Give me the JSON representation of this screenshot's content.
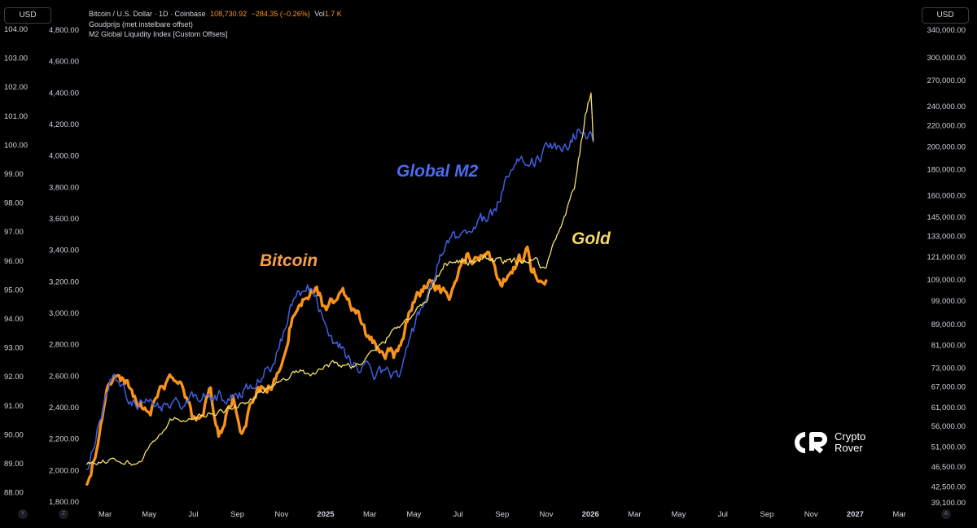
{
  "header": {
    "unit_left": "USD",
    "unit_right": "USD",
    "symbol": "Bitcoin / U.S. Dollar · 1D · Coinbase",
    "price": "108,730.92",
    "change": "−284.35 (−0.26%)",
    "vol_label": "Vol",
    "vol_value": "1.7 K",
    "series_gold": "Goudprijs (met instelbare offset)",
    "series_m2": "M2 Global Liquidity Index [Custom Offsets]"
  },
  "annotations": {
    "m2": "Global M2",
    "bitcoin": "Bitcoin",
    "gold": "Gold"
  },
  "logo": {
    "line1": "Crypto",
    "line2": "Rover"
  },
  "corner_buttons": {
    "y": "Y",
    "z": "Z",
    "a": "A"
  },
  "colors": {
    "background": "#000000",
    "bitcoin": "#f7931a",
    "m2": "#3f5fe0",
    "gold": "#f5e06a",
    "axis_text": "#d1d4dc"
  },
  "chart_data": {
    "type": "line",
    "x_axis": {
      "ticks": [
        "Mar",
        "May",
        "Jul",
        "Sep",
        "Nov",
        "2025",
        "Mar",
        "May",
        "Jul",
        "Sep",
        "Nov",
        "2026",
        "Mar",
        "May",
        "Jul",
        "Sep",
        "Nov",
        "2027",
        "Mar"
      ],
      "bold_ticks": [
        "2025",
        "2026",
        "2027"
      ]
    },
    "axes": {
      "left_outer": {
        "ticks": [
          "104.00",
          "103.00",
          "102.00",
          "101.00",
          "100.00",
          "99.00",
          "98.00",
          "97.00",
          "96.00",
          "95.00",
          "94.00",
          "93.00",
          "92.00",
          "91.00",
          "90.00",
          "89.00",
          "88.00"
        ]
      },
      "left_inner": {
        "ticks": [
          "4,800.00",
          "4,600.00",
          "4,400.00",
          "4,200.00",
          "4,000.00",
          "3,800.00",
          "3,600.00",
          "3,400.00",
          "3,200.00",
          "3,000.00",
          "2,800.00",
          "2,600.00",
          "2,400.00",
          "2,200.00",
          "2,000.00",
          "1,800.00"
        ]
      },
      "right": {
        "scale": "log",
        "ticks": [
          "340,000.00",
          "300,000.00",
          "270,000.00",
          "240,000.00",
          "220,000.00",
          "200,000.00",
          "180,000.00",
          "160,000.00",
          "145,000.00",
          "133,000.00",
          "121,000.00",
          "109,000.00",
          "99,000.00",
          "89,000.00",
          "81,000.00",
          "73,000.00",
          "67,000.00",
          "61,000.00",
          "56,000.00",
          "51,000.00",
          "46,500.00",
          "42,500.00",
          "39,100.00"
        ]
      }
    },
    "grid": false,
    "series": [
      {
        "name": "Bitcoin",
        "axis": "right",
        "x": [
          "2024-02-05",
          "2024-02-20",
          "2024-03-05",
          "2024-03-13",
          "2024-04-01",
          "2024-04-15",
          "2024-05-01",
          "2024-05-20",
          "2024-06-10",
          "2024-07-05",
          "2024-07-25",
          "2024-08-05",
          "2024-08-25",
          "2024-09-06",
          "2024-09-27",
          "2024-10-15",
          "2024-10-31",
          "2024-11-13",
          "2024-11-22",
          "2024-12-05",
          "2024-12-17",
          "2025-01-01",
          "2025-01-20",
          "2025-02-05",
          "2025-02-28",
          "2025-03-10",
          "2025-04-08",
          "2025-04-25",
          "2025-05-22",
          "2025-06-10",
          "2025-06-22",
          "2025-07-14",
          "2025-08-14",
          "2025-09-01",
          "2025-09-15",
          "2025-10-06",
          "2025-10-11",
          "2025-10-20",
          "2025-11-01"
        ],
        "y": [
          43000,
          52000,
          67000,
          71000,
          69000,
          63000,
          59000,
          68000,
          69000,
          56000,
          66000,
          53500,
          64000,
          54000,
          66000,
          67000,
          72000,
          90000,
          98000,
          99000,
          106000,
          94000,
          104000,
          98000,
          84000,
          80000,
          77000,
          94000,
          110000,
          104000,
          101000,
          122000,
          122000,
          108000,
          116000,
          124000,
          113000,
          111000,
          108700
        ]
      },
      {
        "name": "Global M2",
        "axis": "left_outer",
        "x": [
          "2024-02-05",
          "2024-03-10",
          "2024-04-15",
          "2024-05-30",
          "2024-07-15",
          "2024-08-30",
          "2024-09-20",
          "2024-10-20",
          "2024-11-20",
          "2024-12-10",
          "2025-01-10",
          "2025-02-10",
          "2025-03-10",
          "2025-04-10",
          "2025-05-15",
          "2025-06-15",
          "2025-07-20",
          "2025-08-20",
          "2025-09-20",
          "2025-10-10",
          "2025-11-01",
          "2025-12-01",
          "2025-12-20",
          "2026-01-05"
        ],
        "y": [
          88.8,
          92.0,
          91.0,
          91.0,
          91.3,
          91.3,
          91.8,
          92.5,
          94.8,
          95.1,
          93.3,
          92.4,
          92.1,
          92.1,
          94.5,
          96.5,
          97.2,
          97.6,
          99.7,
          99.3,
          99.8,
          100.0,
          100.7,
          100.1
        ]
      },
      {
        "name": "Gold",
        "axis": "left_inner",
        "x": [
          "2024-02-05",
          "2024-03-10",
          "2024-04-15",
          "2024-05-30",
          "2024-07-15",
          "2024-08-30",
          "2024-09-20",
          "2024-10-20",
          "2024-11-20",
          "2024-12-10",
          "2025-01-10",
          "2025-02-10",
          "2025-03-10",
          "2025-04-10",
          "2025-05-15",
          "2025-06-15",
          "2025-07-20",
          "2025-08-20",
          "2025-09-20",
          "2025-10-10",
          "2025-11-01",
          "2025-11-20",
          "2025-12-10",
          "2025-12-25",
          "2026-01-02",
          "2026-01-05"
        ],
        "y": [
          2040,
          2070,
          2040,
          2320,
          2350,
          2400,
          2450,
          2550,
          2630,
          2620,
          2680,
          2660,
          2760,
          2920,
          3050,
          3330,
          3330,
          3340,
          3320,
          3350,
          3290,
          3550,
          3800,
          4250,
          4400,
          4100
        ]
      }
    ]
  }
}
